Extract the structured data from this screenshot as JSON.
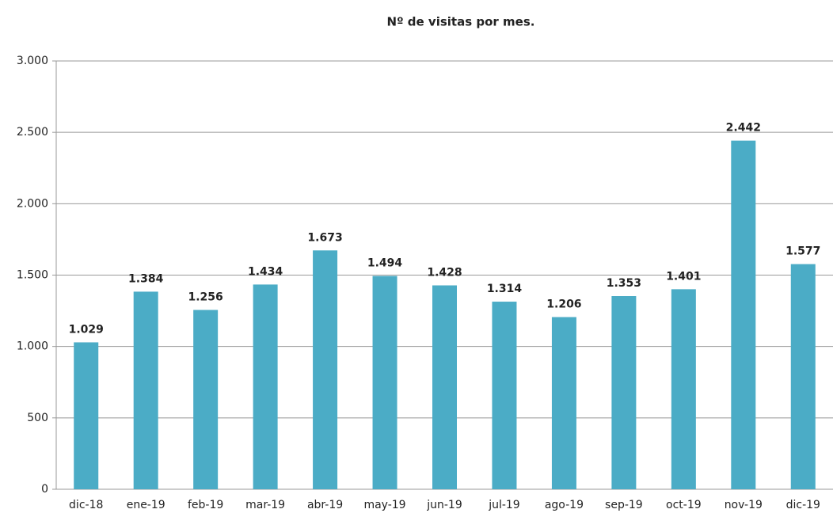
{
  "chart_data": {
    "type": "bar",
    "title": "Nº de visitas por mes.",
    "categories": [
      "dic-18",
      "ene-19",
      "feb-19",
      "mar-19",
      "abr-19",
      "may-19",
      "jun-19",
      "jul-19",
      "ago-19",
      "sep-19",
      "oct-19",
      "nov-19",
      "dic-19"
    ],
    "values": [
      1029,
      1384,
      1256,
      1434,
      1673,
      1494,
      1428,
      1314,
      1206,
      1353,
      1401,
      2442,
      1577
    ],
    "value_labels": [
      "1.029",
      "1.384",
      "1.256",
      "1.434",
      "1.673",
      "1.494",
      "1.428",
      "1.314",
      "1.206",
      "1.353",
      "1.401",
      "2.442",
      "1.577"
    ],
    "color": "#4bacc6",
    "ylim": [
      0,
      3000
    ],
    "yticks": [
      0,
      500,
      {
        "value": 1000,
        "label": "1.000"
      },
      {
        "value": 1500,
        "label": "1.500"
      },
      {
        "value": 2000,
        "label": "2.000"
      },
      {
        "value": 2500,
        "label": "2.500"
      },
      {
        "value": 3000,
        "label": "3.000"
      }
    ],
    "grid": true
  }
}
